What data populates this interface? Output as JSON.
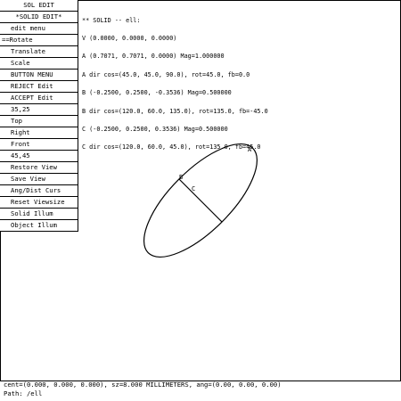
{
  "menu": {
    "items": [
      {
        "label": "SOL EDIT",
        "type": "head"
      },
      {
        "label": "*SOLID EDIT*",
        "type": "head"
      },
      {
        "label": "edit menu",
        "type": "item"
      },
      {
        "label": "==Rotate",
        "type": "current"
      },
      {
        "label": "Translate",
        "type": "item"
      },
      {
        "label": "Scale",
        "type": "item"
      },
      {
        "label": "BUTTON MENU",
        "type": "item"
      },
      {
        "label": "REJECT Edit",
        "type": "item"
      },
      {
        "label": "ACCEPT Edit",
        "type": "item"
      },
      {
        "label": "35,25",
        "type": "item"
      },
      {
        "label": "Top",
        "type": "item"
      },
      {
        "label": "Right",
        "type": "item"
      },
      {
        "label": "Front",
        "type": "item"
      },
      {
        "label": "45,45",
        "type": "item"
      },
      {
        "label": "Restore View",
        "type": "item"
      },
      {
        "label": "Save View",
        "type": "item"
      },
      {
        "label": "Ang/Dist Curs",
        "type": "item"
      },
      {
        "label": "Reset Viewsize",
        "type": "item"
      },
      {
        "label": "Solid Illum",
        "type": "item"
      },
      {
        "label": "Object Illum",
        "type": "item"
      }
    ]
  },
  "info": {
    "lines": [
      "** SOLID -- ell:",
      "V (0.0000, 0.0000, 0.0000)",
      "A (0.7071, 0.7071, 0.0000) Mag=1.000000",
      "A dir cos=(45.0, 45.0, 90.0), rot=45.0, fb=0.0",
      "B (-0.2500, 0.2500, -0.3536) Mag=0.500000",
      "B dir cos=(120.0, 60.0, 135.0), rot=135.0, fb=-45.0",
      "C (-0.2500, 0.2500, 0.3536) Mag=0.500000",
      "C dir cos=(120.0, 60.0, 45.0), rot=135.0, fb=45.0"
    ]
  },
  "viewport": {
    "labels": {
      "a": "A",
      "b": "B",
      "c": "C"
    },
    "stroke_color": "#000000"
  },
  "status": {
    "line1": "cent=(0.000, 0.000, 0.000), sz=8.000 MILLIMETERS, ang=(0.00, 0.00, 0.00)",
    "line2": "Path: /ell"
  }
}
